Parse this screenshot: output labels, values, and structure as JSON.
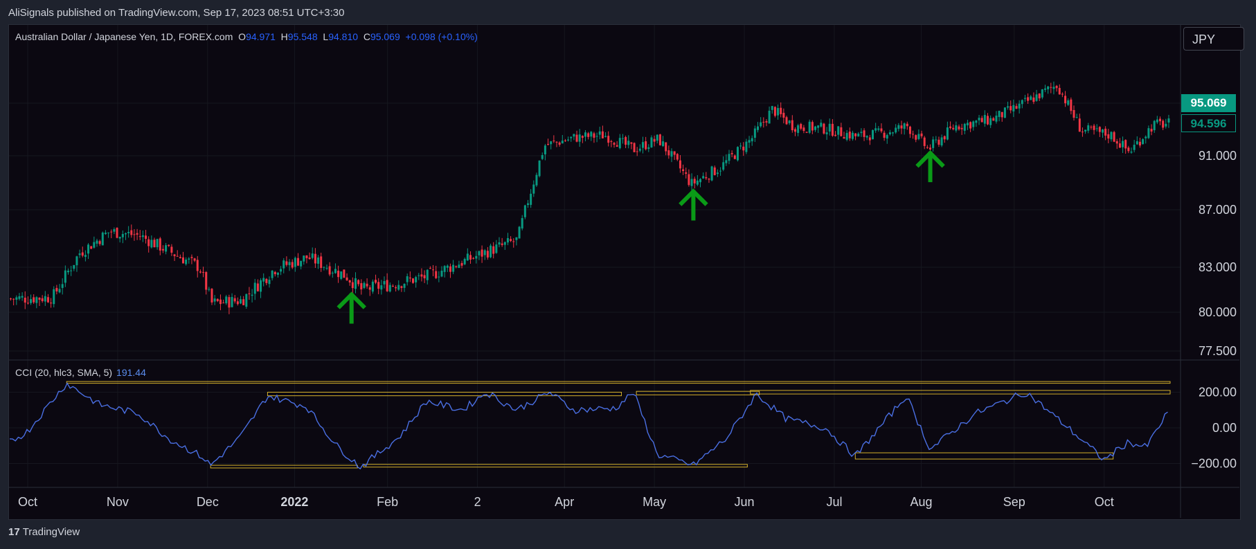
{
  "header": {
    "published_text": "AliSignals published on TradingView.com, Sep 17, 2023 08:51 UTC+3:30"
  },
  "symbol_bar": {
    "name": "Australian Dollar / Japanese Yen, 1D, FOREX.com",
    "open_label": "O",
    "open": "94.971",
    "high_label": "H",
    "high": "95.548",
    "low_label": "L",
    "low": "94.810",
    "close_label": "C",
    "close": "95.069",
    "change": "+0.098 (+0.10%)"
  },
  "currency_button": "JPY",
  "price_tags": {
    "last": "95.069",
    "secondary": "94.596"
  },
  "cci_legend": {
    "label": "CCI (20, hlc3, SMA, 5)",
    "value": "191.44"
  },
  "footer": {
    "brand": "TradingView"
  },
  "colors": {
    "up": "#089981",
    "down": "#f23645",
    "cci_line": "#4a6fe3",
    "box": "#d4b02b",
    "arrow": "#0a9a17",
    "background": "#0b0811"
  },
  "chart_data": [
    {
      "type": "candlestick",
      "title": "Australian Dollar / Japanese Yen, 1D, FOREX.com",
      "y_ticks": [
        "95.069",
        "91.000",
        "87.000",
        "83.000",
        "80.000",
        "77.500"
      ],
      "ylim": [
        77.5,
        95.069
      ],
      "x_ticks": [
        "Oct",
        "Nov",
        "Dec",
        "2022",
        "Feb",
        "2",
        "Apr",
        "May",
        "Jun",
        "Jul",
        "Aug",
        "Sep",
        "Oct"
      ],
      "x_range": [
        "2022-09-28",
        "2023-10-20"
      ],
      "close_path": [
        [
          "2022-09-28",
          80.9
        ],
        [
          "2022-10-12",
          81.0
        ],
        [
          "2022-10-21",
          84.0
        ],
        [
          "2022-10-31",
          85.5
        ],
        [
          "2022-11-10",
          85.2
        ],
        [
          "2022-11-20",
          84.1
        ],
        [
          "2022-11-30",
          83.0
        ],
        [
          "2022-12-04",
          80.6
        ],
        [
          "2022-12-14",
          80.8
        ],
        [
          "2022-12-25",
          82.9
        ],
        [
          "2023-01-05",
          83.7
        ],
        [
          "2023-01-18",
          82.4
        ],
        [
          "2023-01-23",
          81.5
        ],
        [
          "2023-02-03",
          81.9
        ],
        [
          "2023-02-14",
          82.4
        ],
        [
          "2023-02-26",
          83.4
        ],
        [
          "2023-03-06",
          84.1
        ],
        [
          "2023-03-16",
          84.9
        ],
        [
          "2023-03-19",
          87.3
        ],
        [
          "2023-03-25",
          91.8
        ],
        [
          "2023-04-04",
          92.4
        ],
        [
          "2023-04-14",
          92.6
        ],
        [
          "2023-04-24",
          91.5
        ],
        [
          "2023-05-02",
          92.3
        ],
        [
          "2023-05-13",
          88.9
        ],
        [
          "2023-05-23",
          90.2
        ],
        [
          "2023-06-02",
          92.3
        ],
        [
          "2023-06-09",
          94.6
        ],
        [
          "2023-06-16",
          93.3
        ],
        [
          "2023-06-27",
          93.1
        ],
        [
          "2023-07-07",
          92.5
        ],
        [
          "2023-07-17",
          92.8
        ],
        [
          "2023-07-24",
          93.3
        ],
        [
          "2023-07-31",
          91.5
        ],
        [
          "2023-08-09",
          93.3
        ],
        [
          "2023-08-21",
          93.8
        ],
        [
          "2023-08-30",
          94.8
        ],
        [
          "2023-09-12",
          96.5
        ],
        [
          "2023-09-20",
          93.0
        ],
        [
          "2023-09-30",
          92.6
        ],
        [
          "2023-10-06",
          91.3
        ],
        [
          "2023-10-14",
          93.4
        ],
        [
          "2023-10-20",
          93.5
        ]
      ],
      "signal_arrows": [
        {
          "date": "2023-01-20",
          "price": 79.4,
          "label": "up-arrow"
        },
        {
          "date": "2023-05-14",
          "price": 86.4,
          "label": "up-arrow"
        },
        {
          "date": "2023-08-01",
          "price": 89.2,
          "label": "up-arrow"
        }
      ]
    },
    {
      "type": "line",
      "title": "CCI (20, hlc3, SMA, 5)",
      "y_ticks": [
        "200.00",
        "0.00",
        "−200.00"
      ],
      "ylim": [
        -250,
        270
      ],
      "current_value": 191.44,
      "series": [
        {
          "name": "CCI",
          "values": [
            [
              "2022-09-28",
              -80
            ],
            [
              "2022-10-04",
              -20
            ],
            [
              "2022-10-12",
              150
            ],
            [
              "2022-10-17",
              250
            ],
            [
              "2022-10-28",
              130
            ],
            [
              "2022-11-10",
              80
            ],
            [
              "2022-11-20",
              -60
            ],
            [
              "2022-12-01",
              -160
            ],
            [
              "2022-12-04",
              -210
            ],
            [
              "2022-12-14",
              -50
            ],
            [
              "2022-12-23",
              180
            ],
            [
              "2023-01-05",
              120
            ],
            [
              "2023-01-15",
              -100
            ],
            [
              "2023-01-23",
              -220
            ],
            [
              "2023-02-05",
              -50
            ],
            [
              "2023-02-14",
              150
            ],
            [
              "2023-02-26",
              100
            ],
            [
              "2023-03-06",
              200
            ],
            [
              "2023-03-16",
              100
            ],
            [
              "2023-03-27",
              200
            ],
            [
              "2023-04-04",
              100
            ],
            [
              "2023-04-18",
              110
            ],
            [
              "2023-04-24",
              200
            ],
            [
              "2023-05-02",
              -150
            ],
            [
              "2023-05-14",
              -210
            ],
            [
              "2023-05-25",
              -60
            ],
            [
              "2023-06-04",
              190
            ],
            [
              "2023-06-14",
              50
            ],
            [
              "2023-06-27",
              0
            ],
            [
              "2023-07-07",
              -160
            ],
            [
              "2023-07-24",
              180
            ],
            [
              "2023-08-01",
              -120
            ],
            [
              "2023-08-16",
              80
            ],
            [
              "2023-09-02",
              200
            ],
            [
              "2023-09-16",
              0
            ],
            [
              "2023-09-28",
              -180
            ],
            [
              "2023-10-06",
              -80
            ],
            [
              "2023-10-12",
              -110
            ],
            [
              "2023-10-20",
              110
            ]
          ]
        }
      ],
      "annotation_boxes": [
        {
          "from": "2022-10-17",
          "to": "2023-10-20",
          "high": 260,
          "low": 250
        },
        {
          "from": "2022-12-23",
          "to": "2023-04-20",
          "high": 200,
          "low": 180
        },
        {
          "from": "2023-04-25",
          "to": "2023-06-05",
          "high": 205,
          "low": 185
        },
        {
          "from": "2023-06-02",
          "to": "2023-10-20",
          "high": 210,
          "low": 190
        },
        {
          "from": "2022-12-04",
          "to": "2023-01-22",
          "high": -210,
          "low": -225
        },
        {
          "from": "2023-01-24",
          "to": "2023-06-01",
          "high": -205,
          "low": -220
        },
        {
          "from": "2023-07-07",
          "to": "2023-10-01",
          "high": -140,
          "low": -175
        }
      ]
    }
  ]
}
